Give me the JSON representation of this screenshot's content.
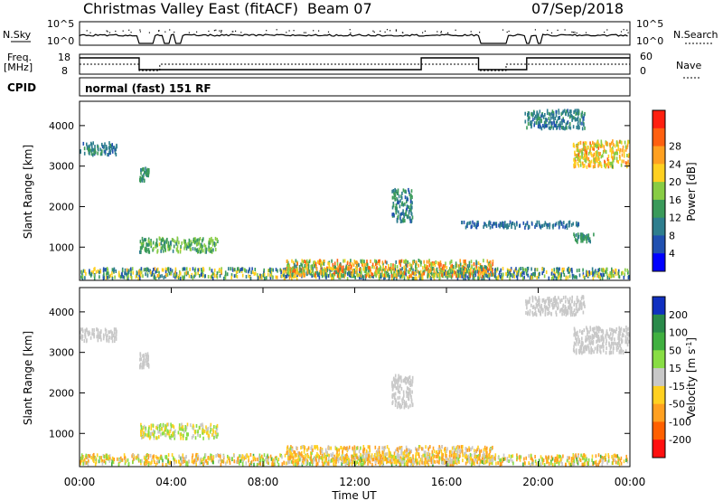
{
  "header": {
    "station": "Christmas Valley East (fitACF)",
    "beam": "Beam 07",
    "date": "07/Sep/2018"
  },
  "panels": {
    "nsky": {
      "label": "N.Sky",
      "right_label": "N.Search",
      "ticks": [
        "10^5",
        "10^0"
      ]
    },
    "freq": {
      "label_line1": "Freq.",
      "label_line2": "[MHz]",
      "right_label": "Nave",
      "left_ticks": [
        "18",
        "8"
      ],
      "right_ticks": [
        "60",
        "0"
      ]
    },
    "cpid": {
      "label": "CPID",
      "text": "normal (fast) 151 RF"
    }
  },
  "chart_data": [
    {
      "type": "heatmap",
      "title": "",
      "ylabel": "Slant Range [km]",
      "xlabel": "",
      "yticks": [
        "1000",
        "2000",
        "3000",
        "4000"
      ],
      "ytick_values": [
        1000,
        2000,
        3000,
        4000
      ],
      "ylim": [
        180,
        4600
      ],
      "xlim": [
        0,
        24
      ],
      "colorbar": {
        "label": "Power [dB]",
        "ticks": [
          "4",
          "8",
          "12",
          "16",
          "20",
          "24",
          "28"
        ],
        "colors": [
          "#0000ff",
          "#2050b0",
          "#2e7e8e",
          "#3a9a5a",
          "#88cc44",
          "#ffd020",
          "#ffa020",
          "#ff6010",
          "#ff2010"
        ]
      },
      "scatter_regions": [
        {
          "t0": 0.0,
          "t1": 1.6,
          "r0": 3250,
          "r1": 3550,
          "value_range": [
            6,
            12
          ]
        },
        {
          "t0": 2.6,
          "t1": 3.0,
          "r0": 2600,
          "r1": 2950,
          "value_range": [
            8,
            14
          ]
        },
        {
          "t0": 2.6,
          "t1": 6.0,
          "r0": 850,
          "r1": 1200,
          "value_range": [
            10,
            18
          ]
        },
        {
          "t0": 0.0,
          "t1": 24.0,
          "r0": 200,
          "r1": 450,
          "value_range": [
            4,
            22
          ]
        },
        {
          "t0": 9.0,
          "t1": 18.0,
          "r0": 250,
          "r1": 650,
          "value_range": [
            10,
            28
          ]
        },
        {
          "t0": 13.6,
          "t1": 14.5,
          "r0": 1600,
          "r1": 2400,
          "value_range": [
            6,
            14
          ]
        },
        {
          "t0": 16.5,
          "t1": 21.8,
          "r0": 1450,
          "r1": 1600,
          "value_range": [
            6,
            10
          ]
        },
        {
          "t0": 21.5,
          "t1": 24.0,
          "r0": 2950,
          "r1": 3600,
          "value_range": [
            14,
            26
          ]
        },
        {
          "t0": 21.5,
          "t1": 22.4,
          "r0": 1100,
          "r1": 1300,
          "value_range": [
            8,
            14
          ]
        },
        {
          "t0": 19.4,
          "t1": 22.0,
          "r0": 3900,
          "r1": 4350,
          "value_range": [
            6,
            12
          ]
        }
      ]
    },
    {
      "type": "heatmap",
      "title": "",
      "ylabel": "Slant Range [km]",
      "xlabel": "Time UT",
      "yticks": [
        "1000",
        "2000",
        "3000",
        "4000"
      ],
      "ytick_values": [
        1000,
        2000,
        3000,
        4000
      ],
      "xticks": [
        "00:00",
        "04:00",
        "08:00",
        "12:00",
        "16:00",
        "20:00",
        "00:00"
      ],
      "xtick_values": [
        0,
        4,
        8,
        12,
        16,
        20,
        24
      ],
      "ylim": [
        180,
        4600
      ],
      "xlim": [
        0,
        24
      ],
      "colorbar": {
        "label": "Velocity [m s",
        "label_sup": "-1",
        "label_end": "]",
        "ticks": [
          "200",
          "100",
          "50",
          "15",
          "-15",
          "-50",
          "-100",
          "-200"
        ],
        "colors": [
          "#1030c0",
          "#2a8a4a",
          "#40b040",
          "#88dd44",
          "#c8c8c8",
          "#ffd020",
          "#ffa020",
          "#ff6000",
          "#ff1010"
        ]
      },
      "scatter_regions": [
        {
          "t0": 0.0,
          "t1": 1.6,
          "r0": 3250,
          "r1": 3550,
          "value_range": [
            -15,
            15
          ]
        },
        {
          "t0": 2.6,
          "t1": 3.0,
          "r0": 2600,
          "r1": 2950,
          "value_range": [
            -15,
            15
          ]
        },
        {
          "t0": 2.6,
          "t1": 6.0,
          "r0": 850,
          "r1": 1200,
          "value_range": [
            -50,
            50
          ]
        },
        {
          "t0": 0.0,
          "t1": 24.0,
          "r0": 200,
          "r1": 450,
          "value_range": [
            -100,
            60
          ]
        },
        {
          "t0": 9.0,
          "t1": 18.0,
          "r0": 250,
          "r1": 650,
          "value_range": [
            -80,
            20
          ]
        },
        {
          "t0": 13.6,
          "t1": 14.5,
          "r0": 1600,
          "r1": 2400,
          "value_range": [
            -15,
            15
          ]
        },
        {
          "t0": 21.5,
          "t1": 24.0,
          "r0": 2950,
          "r1": 3600,
          "value_range": [
            -15,
            15
          ]
        },
        {
          "t0": 19.4,
          "t1": 22.0,
          "r0": 3900,
          "r1": 4350,
          "value_range": [
            -15,
            15
          ]
        }
      ]
    }
  ]
}
